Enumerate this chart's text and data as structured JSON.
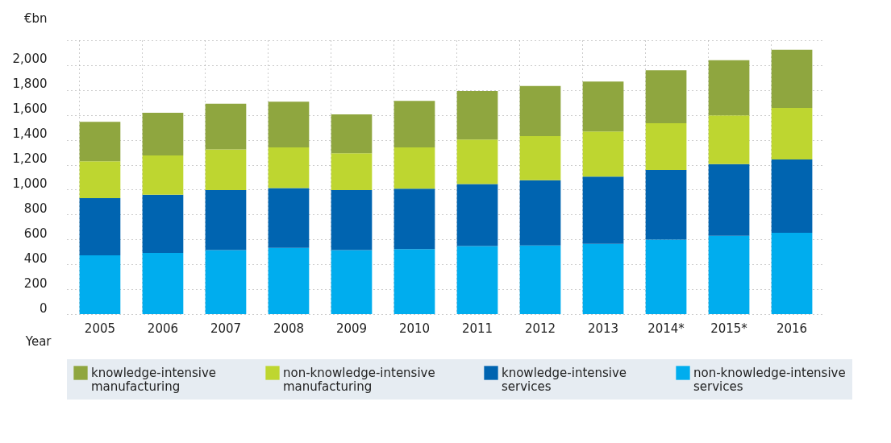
{
  "chart_data": {
    "type": "bar",
    "stacked": true,
    "xlabel": "Year",
    "ylabel": "€bn",
    "categories": [
      "2005",
      "2006",
      "2007",
      "2008",
      "2009",
      "2010",
      "2011",
      "2012",
      "2013",
      "2014*",
      "2015*",
      "2016"
    ],
    "series": [
      {
        "name": "non-knowledge-intensive services",
        "color": "#00adee",
        "values": [
          473,
          492,
          515,
          532,
          515,
          522,
          546,
          552,
          565,
          599,
          629,
          653
        ]
      },
      {
        "name": "knowledge-intensive services",
        "color": "#0064b0",
        "values": [
          458,
          468,
          481,
          481,
          481,
          485,
          499,
          523,
          540,
          559,
          576,
          589
        ]
      },
      {
        "name": "non-knowledge-intensive manufacturing",
        "color": "#bed630",
        "values": [
          297,
          314,
          327,
          327,
          297,
          333,
          357,
          355,
          362,
          375,
          392,
          415
        ]
      },
      {
        "name": "knowledge-intensive manufacturing",
        "color": "#8fa63f",
        "values": [
          317,
          344,
          367,
          367,
          312,
          373,
          390,
          403,
          402,
          426,
          443,
          467
        ]
      }
    ],
    "ylim": [
      0,
      2200
    ],
    "yticks": [
      {
        "value": 0,
        "label": "0"
      },
      {
        "value": 200,
        "label": "200"
      },
      {
        "value": 400,
        "label": "400"
      },
      {
        "value": 600,
        "label": "600"
      },
      {
        "value": 800,
        "label": "800"
      },
      {
        "value": 1000,
        "label": "1,000"
      },
      {
        "value": 1200,
        "label": "1,200"
      },
      {
        "value": 1400,
        "label": "1,400"
      },
      {
        "value": 1600,
        "label": "1,600"
      },
      {
        "value": 1800,
        "label": "1,800"
      },
      {
        "value": 2000,
        "label": "2,000"
      },
      {
        "value": 2200,
        "label": null
      }
    ],
    "grid": true,
    "legend": "bottom"
  }
}
